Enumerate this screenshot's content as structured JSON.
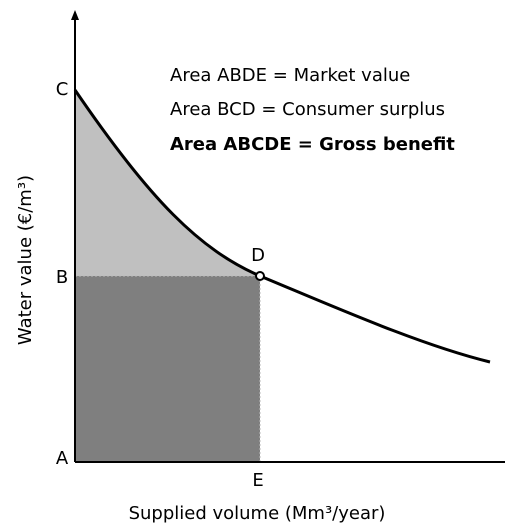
{
  "points": [
    "A",
    "B",
    "C",
    "D",
    "E"
  ],
  "legend": [
    "Area ABDE = Market value",
    "Area BCD = Consumer surplus",
    "Area ABCDE = Gross benefit"
  ],
  "x_axis_title": "Supplied volume (Mm³/year)",
  "y_axis_title": "Water value (€/m³)"
}
